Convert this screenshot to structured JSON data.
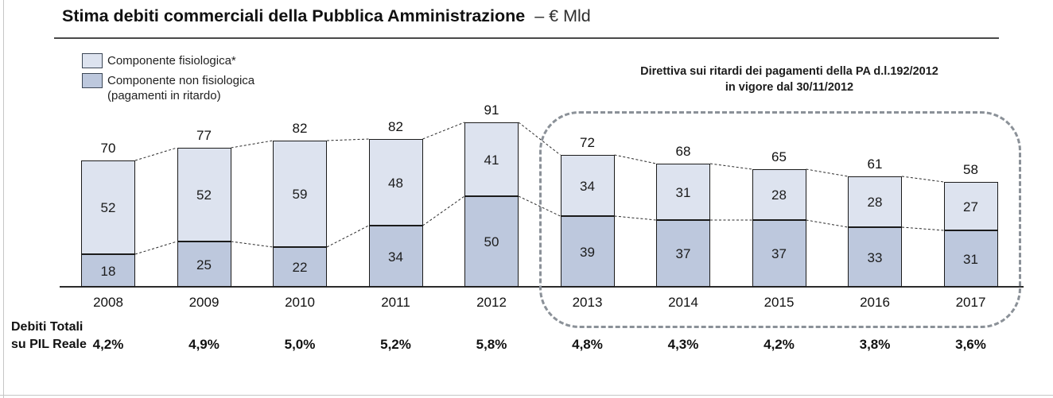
{
  "header": {
    "title_bold": "Stima debiti commerciali della Pubblica Amministrazione",
    "title_suffix": "– € Mld"
  },
  "legend": {
    "position": "top-left",
    "items": [
      {
        "label": "Componente fisiologica*",
        "color": "#dde3ef"
      },
      {
        "label": "Componente non fisiologica",
        "label2": "(pagamenti in ritardo)",
        "color": "#bdc8dd"
      }
    ]
  },
  "annotation": {
    "line1": "Direttiva sui ritardi dei pagamenti della PA d.l.192/2012",
    "line2": "in vigore dal 30/11/2012"
  },
  "footer_label": {
    "line1": "Debiti Totali",
    "line2": "su PIL Reale"
  },
  "colors": {
    "fisiologica_fill": "#dde3ef",
    "non_fisiologica_fill": "#bdc8dd",
    "bar_border": "#1b1b1b",
    "highlight_box_border": "#8b9198",
    "connector_line": "#2a2a2a",
    "axis": "#2b2b2b"
  },
  "chart_data": {
    "type": "bar",
    "stacked": true,
    "title": "Stima debiti commerciali della Pubblica Amministrazione – € Mld",
    "xlabel": "",
    "ylabel": "€ Mld",
    "ylim": [
      0,
      100
    ],
    "grid": false,
    "legend_position": "top-left",
    "categories": [
      "2008",
      "2009",
      "2010",
      "2011",
      "2012",
      "2013",
      "2014",
      "2015",
      "2016",
      "2017"
    ],
    "series": [
      {
        "name": "Componente non fisiologica (pagamenti in ritardo)",
        "color": "#bdc8dd",
        "values": [
          18,
          25,
          22,
          34,
          50,
          39,
          37,
          37,
          33,
          31
        ]
      },
      {
        "name": "Componente fisiologica*",
        "color": "#dde3ef",
        "values": [
          52,
          52,
          59,
          48,
          41,
          34,
          31,
          28,
          28,
          27
        ]
      }
    ],
    "totals": [
      70,
      77,
      82,
      82,
      91,
      72,
      68,
      65,
      61,
      58
    ],
    "pil_reale_row_label": "Debiti Totali su PIL Reale",
    "pil_reale": [
      "4,2%",
      "4,9%",
      "5,0%",
      "5,2%",
      "5,8%",
      "4,8%",
      "4,3%",
      "4,2%",
      "3,8%",
      "3,6%"
    ],
    "highlight_years": [
      "2013",
      "2014",
      "2015",
      "2016",
      "2017"
    ],
    "highlight_label": "Direttiva sui ritardi dei pagamenti della PA d.l.192/2012 in vigore dal 30/11/2012"
  }
}
